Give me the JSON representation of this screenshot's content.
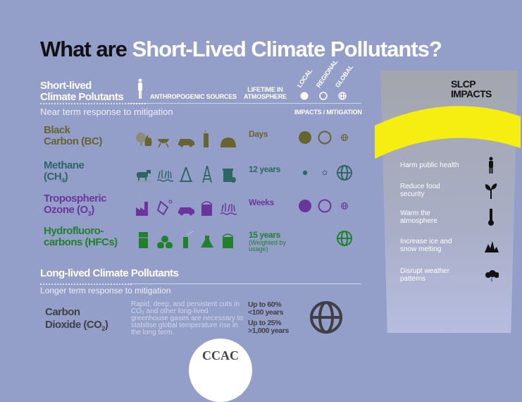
{
  "title": {
    "prefix": "What are",
    "highlight": "Short-Lived Climate Pollutants?"
  },
  "colors": {
    "background": "#949fc9",
    "black_carbon": "#67652e",
    "methane": "#2e6663",
    "ozone": "#6b369c",
    "hfc": "#20812a",
    "co2": "#3f3f44",
    "highlight_band": "#f5ee10"
  },
  "short_lived": {
    "heading_line1": "Short-lived",
    "heading_line2": "Climate Polutants",
    "subtitle": "Near term response to mitigation",
    "col_sources": "ANTHROPOGENIC SOURCES",
    "col_lifetime_line1": "LIFETIME IN",
    "col_lifetime_line2": "ATMOSPHERE",
    "col_local": "LOCAL",
    "col_regional": "REGIONAL",
    "col_global": "GLOBAL",
    "col_impacts": "IMPACTS / MITIGATION",
    "rows": [
      {
        "name_line1": "Black",
        "name_line2": "Carbon (BC)",
        "sub": "",
        "lifetime": "Days",
        "lifetime_note": "",
        "color": "#67652e",
        "sources": [
          "forest-fire-icon",
          "grill-icon",
          "car-icon",
          "smokestack-icon",
          "kiln-icon"
        ],
        "impact": {
          "local": "large",
          "regional": "large",
          "global": "small"
        }
      },
      {
        "name_line1": "Methane",
        "name_line2": "(CH",
        "sub": "4",
        "lifetime": "12 years",
        "lifetime_note": "",
        "color": "#2e6663",
        "sources": [
          "livestock-icon",
          "rice-paddy-icon",
          "gas-rig-icon",
          "oil-derrick-icon",
          "waste-bin-icon"
        ],
        "impact": {
          "local": "small",
          "regional": "small",
          "global": "large"
        }
      },
      {
        "name_line1": "Tropospheric",
        "name_line2": "Ozone (O",
        "sub": "3",
        "lifetime": "Weeks",
        "lifetime_note": "",
        "color": "#6b369c",
        "sources": [
          "factory-icon",
          "chemical-flask-icon",
          "car-icon",
          "paint-can-icon",
          "wetland-icon"
        ],
        "impact": {
          "local": "large",
          "regional": "large",
          "global": "small"
        }
      },
      {
        "name_line1": "Hydrofluoro-",
        "name_line2": "carbons (HFCs)",
        "sub": "",
        "lifetime": "15 years",
        "lifetime_note": "(Weighted by usage)",
        "color": "#20812a",
        "sources": [
          "refrigerator-icon",
          "fan-icon",
          "aerosol-can-icon",
          "flask-icon",
          "paint-can-icon"
        ],
        "impact": {
          "local": "none",
          "regional": "none",
          "global": "large"
        }
      }
    ]
  },
  "long_lived": {
    "heading": "Long-lived Climate Pollutants",
    "subtitle": "Longer term response to mitigation",
    "co2": {
      "name_line1": "Carbon",
      "name_line2": "Dioxide (CO",
      "sub": "2",
      "description": "Rapid, deep, and persistent cuts in CO₂ and other long-lived greenhouse gases are necessary to stabilise global temperature rise in the long term.",
      "lifetime_1a": "Up to 60%",
      "lifetime_1b": "<100 years",
      "lifetime_2a": "Up to 25%",
      "lifetime_2b": ">1,000 years"
    }
  },
  "impacts_panel": {
    "title_line1": "SLCP",
    "title_line2": "IMPACTS",
    "items": [
      {
        "label": "Harm public health",
        "icon": "person-icon"
      },
      {
        "label": "Reduce food security",
        "icon": "plant-icon"
      },
      {
        "label": "Warm the atmosphere",
        "icon": "thermometer-icon"
      },
      {
        "label": "Increase ice and snow melting",
        "icon": "melting-ice-icon"
      },
      {
        "label": "Disrupt weather patterns",
        "icon": "storm-cloud-icon"
      }
    ]
  },
  "logo": {
    "text": "CCAC"
  }
}
